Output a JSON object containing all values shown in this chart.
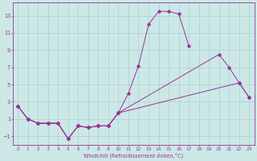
{
  "xlabel": "Windchill (Refroidissement éolien,°C)",
  "background_color": "#cce8e6",
  "grid_color": "#aacfcd",
  "line_color": "#993399",
  "line1_x": [
    0,
    1,
    2,
    3,
    4,
    5,
    6,
    7,
    8,
    9,
    10,
    11,
    12,
    13,
    14,
    15,
    16,
    17
  ],
  "line1_y": [
    2.5,
    1.0,
    0.5,
    0.5,
    0.5,
    -1.3,
    0.2,
    0.0,
    0.2,
    0.2,
    1.7,
    4.0,
    7.2,
    12.0,
    13.5,
    13.5,
    13.2,
    9.5
  ],
  "line2_x": [
    0,
    1,
    2,
    3,
    4,
    5,
    6,
    7,
    8,
    9,
    10,
    20,
    21,
    22,
    23
  ],
  "line2_y": [
    2.5,
    1.0,
    0.5,
    0.5,
    0.5,
    -1.3,
    0.2,
    0.0,
    0.2,
    0.2,
    1.7,
    8.5,
    7.0,
    5.2,
    3.5
  ],
  "line3_x": [
    0,
    1,
    2,
    3,
    4,
    5,
    6,
    7,
    8,
    9,
    10,
    22,
    23
  ],
  "line3_y": [
    2.5,
    1.0,
    0.5,
    0.5,
    0.5,
    -1.3,
    0.2,
    0.0,
    0.2,
    0.2,
    1.7,
    5.2,
    3.5
  ],
  "ylim": [
    -2.0,
    14.5
  ],
  "yticks": [
    -1,
    1,
    3,
    5,
    7,
    9,
    11,
    13
  ],
  "xticks": [
    0,
    1,
    2,
    3,
    4,
    5,
    6,
    7,
    8,
    9,
    10,
    11,
    12,
    13,
    14,
    15,
    16,
    17,
    18,
    19,
    20,
    21,
    22,
    23
  ],
  "xlim": [
    -0.5,
    23.5
  ]
}
